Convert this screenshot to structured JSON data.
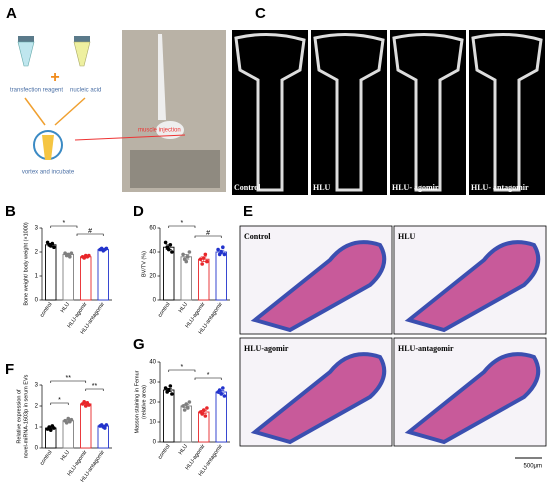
{
  "panel_A": {
    "label": "A",
    "texts": [
      "transfection reagent",
      "nucleic acid",
      "vortex and incubate",
      "muscle injection"
    ]
  },
  "panel_C": {
    "label": "C",
    "images": [
      "Control",
      "HLU",
      "HLU- agomir",
      "HLU- antagomir"
    ]
  },
  "panel_E": {
    "label": "E",
    "images": [
      "Control",
      "HLU",
      "HLU-agomir",
      "HLU-antagomir"
    ],
    "scale_bar": "500μm"
  },
  "chart_data": [
    {
      "type": "bar",
      "panel": "B",
      "ylabel": [
        "Bone weight/ body weight (×1000)"
      ],
      "categories": [
        "control",
        "HLU",
        "HLU-agomir",
        "HLU-antagomir"
      ],
      "colors": [
        "#000000",
        "#7f7f7f",
        "#e8262a",
        "#2233cc"
      ],
      "values": [
        2.3,
        1.9,
        1.8,
        2.1
      ],
      "errors": [
        0.06,
        0.04,
        0.03,
        0.03
      ],
      "points": [
        [
          2.4,
          2.3,
          2.25,
          2.35,
          2.2
        ],
        [
          1.95,
          1.85,
          1.9,
          1.8,
          1.95
        ],
        [
          1.8,
          1.75,
          1.85,
          1.8,
          1.85
        ],
        [
          2.1,
          2.15,
          2.05,
          2.1,
          2.15
        ]
      ],
      "annotations": [
        "*",
        "#"
      ],
      "ylim": [
        0,
        3
      ],
      "yticks": [
        0,
        1,
        2,
        3
      ]
    },
    {
      "type": "bar",
      "panel": "D",
      "ylabel": [
        "BV/TV (%)"
      ],
      "categories": [
        "control",
        "HLU",
        "HLU-agomir",
        "HLU-antagomir"
      ],
      "colors": [
        "#000000",
        "#7f7f7f",
        "#e8262a",
        "#2233cc"
      ],
      "values": [
        44,
        36,
        34,
        40
      ],
      "errors": [
        2,
        2,
        2,
        1.5
      ],
      "points": [
        [
          48,
          44,
          42,
          46,
          40
        ],
        [
          38,
          34,
          32,
          36,
          40
        ],
        [
          34,
          30,
          35,
          38,
          32
        ],
        [
          42,
          38,
          40,
          44,
          38
        ]
      ],
      "annotations": [
        "*",
        "#"
      ],
      "ylim": [
        0,
        60
      ],
      "yticks": [
        0,
        20,
        40,
        60
      ]
    },
    {
      "type": "bar",
      "panel": "F",
      "ylabel": [
        "Relative expression of",
        "novel-miRNA-1603p in serum EVs"
      ],
      "categories": [
        "control",
        "HLU",
        "HLU-agomir",
        "HLU-antagomir"
      ],
      "colors": [
        "#000000",
        "#7f7f7f",
        "#e8262a",
        "#2233cc"
      ],
      "values": [
        0.95,
        1.3,
        2.1,
        1.05
      ],
      "errors": [
        0.05,
        0.05,
        0.05,
        0.04
      ],
      "points": [
        [
          0.9,
          1.0,
          0.85,
          1.05,
          0.95
        ],
        [
          1.3,
          1.2,
          1.4,
          1.25,
          1.35
        ],
        [
          2.1,
          2.2,
          2.0,
          2.15,
          2.05
        ],
        [
          1.05,
          1.1,
          1.0,
          0.95,
          1.1
        ]
      ],
      "annotations": [
        "*",
        "**",
        "**"
      ],
      "ylim": [
        0,
        3
      ],
      "yticks": [
        0,
        1,
        2,
        3
      ]
    },
    {
      "type": "bar",
      "panel": "G",
      "ylabel": [
        "Masson staining in Femur",
        "(relative area)"
      ],
      "categories": [
        "control",
        "HLU",
        "HLU-agomir",
        "HLU-antagomir"
      ],
      "colors": [
        "#000000",
        "#7f7f7f",
        "#e8262a",
        "#2233cc"
      ],
      "values": [
        26,
        18,
        15,
        25
      ],
      "errors": [
        0.8,
        0.8,
        0.8,
        0.8
      ],
      "points": [
        [
          27,
          25,
          26,
          28,
          24
        ],
        [
          18,
          16,
          19,
          17,
          20
        ],
        [
          15,
          14,
          16,
          13,
          17
        ],
        [
          25,
          26,
          24,
          27,
          23
        ]
      ],
      "annotations": [
        "*",
        "*"
      ],
      "ylim": [
        0,
        40
      ],
      "yticks": [
        0,
        10,
        20,
        30,
        40
      ]
    }
  ]
}
